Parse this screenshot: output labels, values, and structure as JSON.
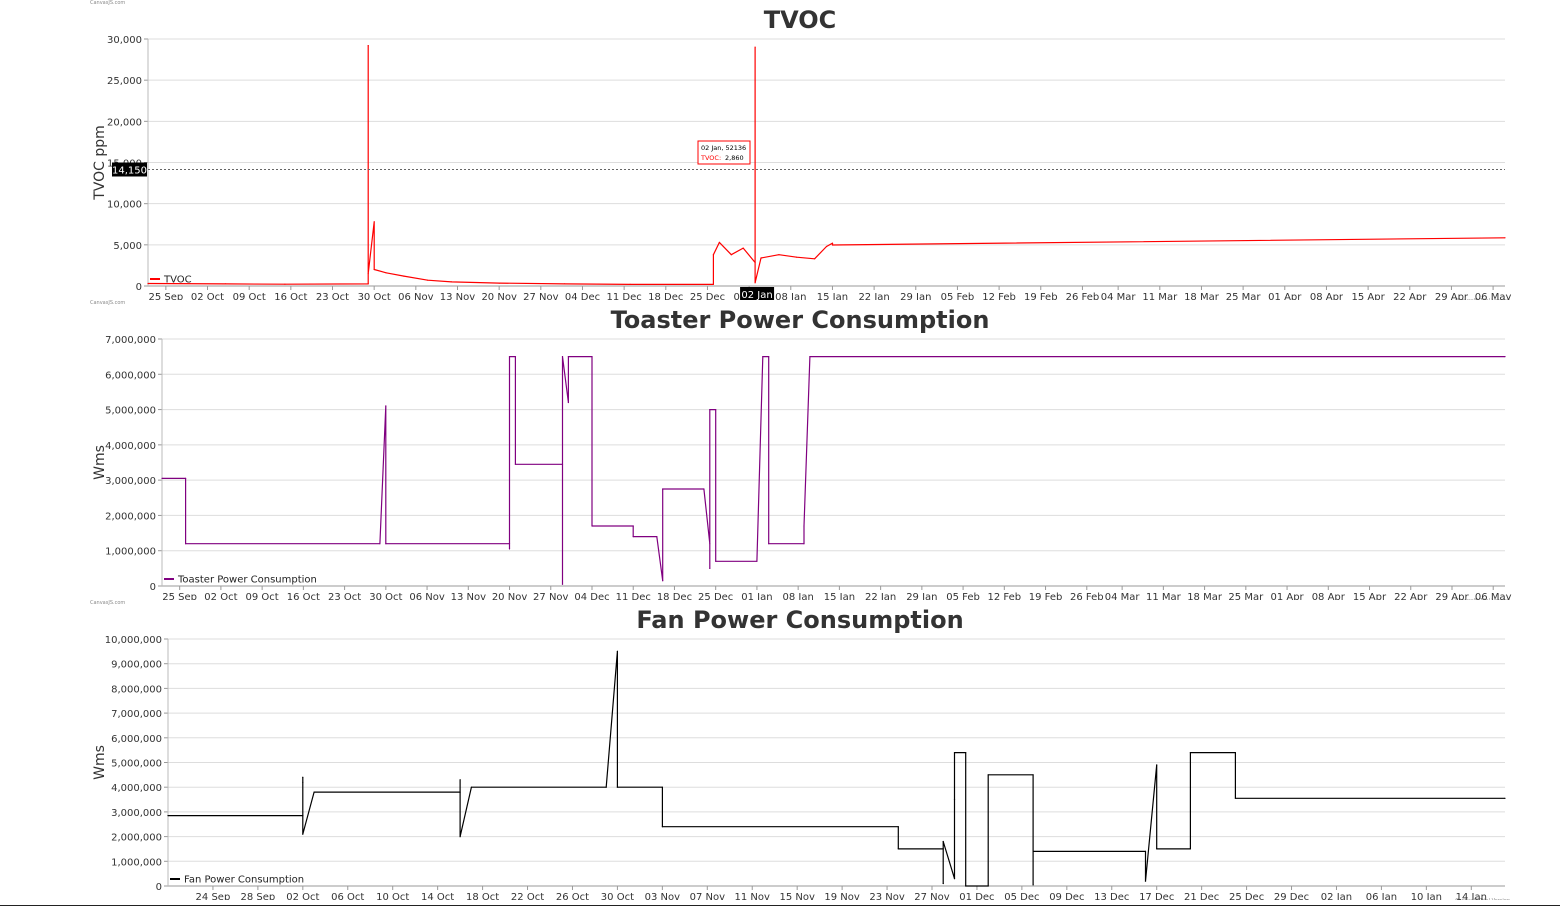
{
  "credits": {
    "left": "CanvasJS.com",
    "right": "CanvasJS Trial Version"
  },
  "chart_data": [
    {
      "type": "line",
      "title": "TVOC",
      "ylabel": "TVOC ppm",
      "xlabel": "",
      "ylim": [
        0,
        30000
      ],
      "yticks": [
        0,
        5000,
        10000,
        15000,
        20000,
        25000,
        30000
      ],
      "ytick_labels": [
        "0",
        "5,000",
        "10,000",
        "15,000",
        "20,000",
        "25,000",
        "30,000"
      ],
      "xlim": [
        "2020-09-22",
        "2021-05-08"
      ],
      "xticks": [
        "2020-09-25",
        "2020-10-02",
        "2020-10-09",
        "2020-10-16",
        "2020-10-23",
        "2020-10-30",
        "2020-11-06",
        "2020-11-13",
        "2020-11-20",
        "2020-11-27",
        "2020-12-04",
        "2020-12-11",
        "2020-12-18",
        "2020-12-25",
        "2021-01-01",
        "2021-01-08",
        "2021-01-15",
        "2021-01-22",
        "2021-01-29",
        "2021-02-05",
        "2021-02-12",
        "2021-02-19",
        "2021-02-26",
        "2021-03-04",
        "2021-03-11",
        "2021-03-18",
        "2021-03-25",
        "2021-04-01",
        "2021-04-08",
        "2021-04-15",
        "2021-04-22",
        "2021-04-29",
        "2021-05-06"
      ],
      "xtick_labels": [
        "25 Sep",
        "02 Oct",
        "09 Oct",
        "16 Oct",
        "23 Oct",
        "30 Oct",
        "06 Nov",
        "13 Nov",
        "20 Nov",
        "27 Nov",
        "04 Dec",
        "11 Dec",
        "18 Dec",
        "25 Dec",
        "01 Jan",
        "08 Jan",
        "15 Jan",
        "22 Jan",
        "29 Jan",
        "05 Feb",
        "12 Feb",
        "19 Feb",
        "26 Feb",
        "04 Mar",
        "11 Mar",
        "18 Mar",
        "25 Mar",
        "01 Apr",
        "08 Apr",
        "15 Apr",
        "22 Apr",
        "29 Apr",
        "06 May"
      ],
      "grid": true,
      "legend_position": "bottom-left",
      "series": [
        {
          "name": "TVOC",
          "color": "#ff0000",
          "points": [
            [
              "2020-09-22",
              300
            ],
            [
              "2020-10-05",
              250
            ],
            [
              "2020-10-15",
              220
            ],
            [
              "2020-10-29",
              250
            ],
            [
              "2020-10-29",
              29200
            ],
            [
              "2020-10-29",
              1500
            ],
            [
              "2020-10-30",
              7800
            ],
            [
              "2020-10-30",
              2000
            ],
            [
              "2020-11-01",
              1600
            ],
            [
              "2020-11-04",
              1200
            ],
            [
              "2020-11-08",
              700
            ],
            [
              "2020-11-12",
              500
            ],
            [
              "2020-11-20",
              350
            ],
            [
              "2020-12-01",
              250
            ],
            [
              "2020-12-12",
              200
            ],
            [
              "2020-12-26",
              200
            ],
            [
              "2020-12-26",
              3800
            ],
            [
              "2020-12-27",
              5300
            ],
            [
              "2020-12-29",
              3800
            ],
            [
              "2020-12-31",
              4600
            ],
            [
              "2021-01-02",
              2860
            ],
            [
              "2021-01-02",
              29000
            ],
            [
              "2021-01-02",
              400
            ],
            [
              "2021-01-03",
              3400
            ],
            [
              "2021-01-06",
              3800
            ],
            [
              "2021-01-09",
              3500
            ],
            [
              "2021-01-12",
              3300
            ],
            [
              "2021-01-14",
              4800
            ],
            [
              "2021-01-15",
              5200
            ],
            [
              "2021-01-15",
              4980
            ],
            [
              "2021-05-08",
              5850
            ]
          ]
        }
      ],
      "crosshair": {
        "y_value": 14150,
        "y_label": "14,150",
        "x_label": "02 Jan"
      },
      "tooltip": {
        "line1": "02 Jan, 52136",
        "series_label": "TVOC:",
        "value": "2,860"
      }
    },
    {
      "type": "line",
      "title": "Toaster Power Consumption",
      "ylabel": "Wms",
      "xlabel": "",
      "ylim": [
        0,
        7000000
      ],
      "yticks": [
        0,
        1000000,
        2000000,
        3000000,
        4000000,
        5000000,
        6000000,
        7000000
      ],
      "ytick_labels": [
        "0",
        "1,000,000",
        "2,000,000",
        "3,000,000",
        "4,000,000",
        "5,000,000",
        "6,000,000",
        "7,000,000"
      ],
      "xlim": [
        "2020-09-22",
        "2021-05-08"
      ],
      "xticks": [
        "2020-09-25",
        "2020-10-02",
        "2020-10-09",
        "2020-10-16",
        "2020-10-23",
        "2020-10-30",
        "2020-11-06",
        "2020-11-13",
        "2020-11-20",
        "2020-11-27",
        "2020-12-04",
        "2020-12-11",
        "2020-12-18",
        "2020-12-25",
        "2021-01-01",
        "2021-01-08",
        "2021-01-15",
        "2021-01-22",
        "2021-01-29",
        "2021-02-05",
        "2021-02-12",
        "2021-02-19",
        "2021-02-26",
        "2021-03-04",
        "2021-03-11",
        "2021-03-18",
        "2021-03-25",
        "2021-04-01",
        "2021-04-08",
        "2021-04-15",
        "2021-04-22",
        "2021-04-29",
        "2021-05-06"
      ],
      "xtick_labels": [
        "25 Sep",
        "02 Oct",
        "09 Oct",
        "16 Oct",
        "23 Oct",
        "30 Oct",
        "06 Nov",
        "13 Nov",
        "20 Nov",
        "27 Nov",
        "04 Dec",
        "11 Dec",
        "18 Dec",
        "25 Dec",
        "01 Jan",
        "08 Jan",
        "15 Jan",
        "22 Jan",
        "29 Jan",
        "05 Feb",
        "12 Feb",
        "19 Feb",
        "26 Feb",
        "04 Mar",
        "11 Mar",
        "18 Mar",
        "25 Mar",
        "01 Apr",
        "08 Apr",
        "15 Apr",
        "22 Apr",
        "29 Apr",
        "06 May"
      ],
      "grid": true,
      "legend_position": "bottom-left",
      "series": [
        {
          "name": "Toaster Power Consumption",
          "color": "#800080",
          "points": [
            [
              "2020-09-22",
              3050000
            ],
            [
              "2020-09-26",
              3050000
            ],
            [
              "2020-09-26",
              1200000
            ],
            [
              "2020-10-29",
              1200000
            ],
            [
              "2020-10-30",
              5100000
            ],
            [
              "2020-10-30",
              1200000
            ],
            [
              "2020-11-20",
              1200000
            ],
            [
              "2020-11-20",
              1050000
            ],
            [
              "2020-11-20",
              6500000
            ],
            [
              "2020-11-21",
              6500000
            ],
            [
              "2020-11-21",
              3450000
            ],
            [
              "2020-11-29",
              3450000
            ],
            [
              "2020-11-29",
              50000
            ],
            [
              "2020-11-29",
              6500000
            ],
            [
              "2020-11-30",
              5200000
            ],
            [
              "2020-11-30",
              6500000
            ],
            [
              "2020-12-04",
              6500000
            ],
            [
              "2020-12-04",
              1700000
            ],
            [
              "2020-12-11",
              1700000
            ],
            [
              "2020-12-11",
              1400000
            ],
            [
              "2020-12-15",
              1400000
            ],
            [
              "2020-12-16",
              150000
            ],
            [
              "2020-12-16",
              2750000
            ],
            [
              "2020-12-23",
              2750000
            ],
            [
              "2020-12-24",
              1200000
            ],
            [
              "2020-12-24",
              500000
            ],
            [
              "2020-12-24",
              5000000
            ],
            [
              "2020-12-25",
              5000000
            ],
            [
              "2020-12-25",
              700000
            ],
            [
              "2021-01-01",
              700000
            ],
            [
              "2021-01-02",
              6500000
            ],
            [
              "2021-01-03",
              6500000
            ],
            [
              "2021-01-03",
              1200000
            ],
            [
              "2021-01-09",
              1200000
            ],
            [
              "2021-01-09",
              1700000
            ],
            [
              "2021-01-10",
              6500000
            ],
            [
              "2021-05-08",
              6500000
            ]
          ]
        }
      ]
    },
    {
      "type": "line",
      "title": "Fan Power Consumption",
      "ylabel": "Wms",
      "xlabel": "",
      "ylim": [
        0,
        10000000
      ],
      "yticks": [
        0,
        1000000,
        2000000,
        3000000,
        4000000,
        5000000,
        6000000,
        7000000,
        8000000,
        9000000,
        10000000
      ],
      "ytick_labels": [
        "0",
        "1,000,000",
        "2,000,000",
        "3,000,000",
        "4,000,000",
        "5,000,000",
        "6,000,000",
        "7,000,000",
        "8,000,000",
        "9,000,000",
        "10,000,000"
      ],
      "xlim": [
        "2020-09-20",
        "2021-01-17"
      ],
      "xticks": [
        "2020-09-24",
        "2020-09-28",
        "2020-10-02",
        "2020-10-06",
        "2020-10-10",
        "2020-10-14",
        "2020-10-18",
        "2020-10-22",
        "2020-10-26",
        "2020-10-30",
        "2020-11-03",
        "2020-11-07",
        "2020-11-11",
        "2020-11-15",
        "2020-11-19",
        "2020-11-23",
        "2020-11-27",
        "2020-12-01",
        "2020-12-05",
        "2020-12-09",
        "2020-12-13",
        "2020-12-17",
        "2020-12-21",
        "2020-12-25",
        "2020-12-29",
        "2021-01-02",
        "2021-01-06",
        "2021-01-10",
        "2021-01-14"
      ],
      "xtick_labels": [
        "24 Sep",
        "28 Sep",
        "02 Oct",
        "06 Oct",
        "10 Oct",
        "14 Oct",
        "18 Oct",
        "22 Oct",
        "26 Oct",
        "30 Oct",
        "03 Nov",
        "07 Nov",
        "11 Nov",
        "15 Nov",
        "19 Nov",
        "23 Nov",
        "27 Nov",
        "01 Dec",
        "05 Dec",
        "09 Dec",
        "13 Dec",
        "17 Dec",
        "21 Dec",
        "25 Dec",
        "29 Dec",
        "02 Jan",
        "06 Jan",
        "10 Jan",
        "14 Jan"
      ],
      "grid": true,
      "legend_position": "bottom-left",
      "series": [
        {
          "name": "Fan Power Consumption",
          "color": "#000000",
          "points": [
            [
              "2020-09-20",
              2850000
            ],
            [
              "2020-10-02",
              2850000
            ],
            [
              "2020-10-02",
              4200000
            ],
            [
              "2020-10-02",
              4400000
            ],
            [
              "2020-10-02",
              2100000
            ],
            [
              "2020-10-03",
              3800000
            ],
            [
              "2020-10-16",
              3800000
            ],
            [
              "2020-10-16",
              4300000
            ],
            [
              "2020-10-16",
              2000000
            ],
            [
              "2020-10-17",
              4000000
            ],
            [
              "2020-10-29",
              4000000
            ],
            [
              "2020-10-30",
              9500000
            ],
            [
              "2020-10-30",
              4000000
            ],
            [
              "2020-11-03",
              4000000
            ],
            [
              "2020-11-03",
              2400000
            ],
            [
              "2020-11-24",
              2400000
            ],
            [
              "2020-11-24",
              1500000
            ],
            [
              "2020-11-28",
              1500000
            ],
            [
              "2020-11-28",
              100000
            ],
            [
              "2020-11-28",
              1800000
            ],
            [
              "2020-11-29",
              300000
            ],
            [
              "2020-11-29",
              3500000
            ],
            [
              "2020-11-29",
              5400000
            ],
            [
              "2020-11-30",
              5400000
            ],
            [
              "2020-11-30",
              0
            ],
            [
              "2020-12-02",
              0
            ],
            [
              "2020-12-02",
              4500000
            ],
            [
              "2020-12-06",
              4500000
            ],
            [
              "2020-12-06",
              50000
            ],
            [
              "2020-12-06",
              1400000
            ],
            [
              "2020-12-16",
              1400000
            ],
            [
              "2020-12-16",
              200000
            ],
            [
              "2020-12-17",
              4900000
            ],
            [
              "2020-12-17",
              1500000
            ],
            [
              "2020-12-20",
              1500000
            ],
            [
              "2020-12-20",
              5400000
            ],
            [
              "2020-12-24",
              5400000
            ],
            [
              "2020-12-24",
              3550000
            ],
            [
              "2021-01-17",
              3550000
            ]
          ]
        }
      ]
    }
  ]
}
